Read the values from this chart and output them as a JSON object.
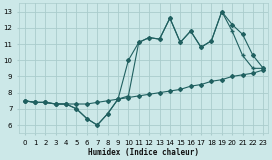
{
  "xlabel": "Humidex (Indice chaleur)",
  "bg_color": "#cce8e8",
  "grid_color": "#aacccc",
  "line_color": "#206060",
  "xlim": [
    -0.5,
    23.5
  ],
  "ylim": [
    5.5,
    13.5
  ],
  "xticks": [
    0,
    1,
    2,
    3,
    4,
    5,
    6,
    7,
    8,
    9,
    10,
    11,
    12,
    13,
    14,
    15,
    16,
    17,
    18,
    19,
    20,
    21,
    22,
    23
  ],
  "yticks": [
    6,
    7,
    8,
    9,
    10,
    11,
    12,
    13
  ],
  "line1_x": [
    0,
    1,
    2,
    3,
    4,
    5,
    6,
    7,
    8,
    9,
    10,
    11,
    12,
    13,
    14,
    15,
    16,
    17,
    18,
    19,
    20,
    21,
    22,
    23
  ],
  "line1_y": [
    7.5,
    7.4,
    7.4,
    7.3,
    7.3,
    7.3,
    7.3,
    7.4,
    7.5,
    7.6,
    7.7,
    7.8,
    7.9,
    8.0,
    8.1,
    8.2,
    8.4,
    8.5,
    8.7,
    8.8,
    9.0,
    9.1,
    9.2,
    9.4
  ],
  "line2_x": [
    0,
    1,
    2,
    3,
    4,
    5,
    6,
    7,
    8,
    9,
    10,
    11,
    12,
    13,
    14,
    15,
    16,
    17,
    18,
    19,
    20,
    21,
    22,
    23
  ],
  "line2_y": [
    7.5,
    7.4,
    7.4,
    7.3,
    7.3,
    7.0,
    6.4,
    6.0,
    6.7,
    7.6,
    10.0,
    11.1,
    11.4,
    11.3,
    12.6,
    11.1,
    11.8,
    10.8,
    11.2,
    13.0,
    12.2,
    11.6,
    10.3,
    9.5
  ],
  "line3_x": [
    0,
    1,
    2,
    3,
    4,
    5,
    6,
    7,
    8,
    9,
    10,
    11,
    12,
    13,
    14,
    15,
    16,
    17,
    18,
    19,
    20,
    21,
    22,
    23
  ],
  "line3_y": [
    7.5,
    7.4,
    7.4,
    7.3,
    7.3,
    7.0,
    6.4,
    6.0,
    6.7,
    7.6,
    7.8,
    11.1,
    11.4,
    11.3,
    12.6,
    11.1,
    11.8,
    10.8,
    11.2,
    13.0,
    11.8,
    10.3,
    9.5,
    9.5
  ]
}
